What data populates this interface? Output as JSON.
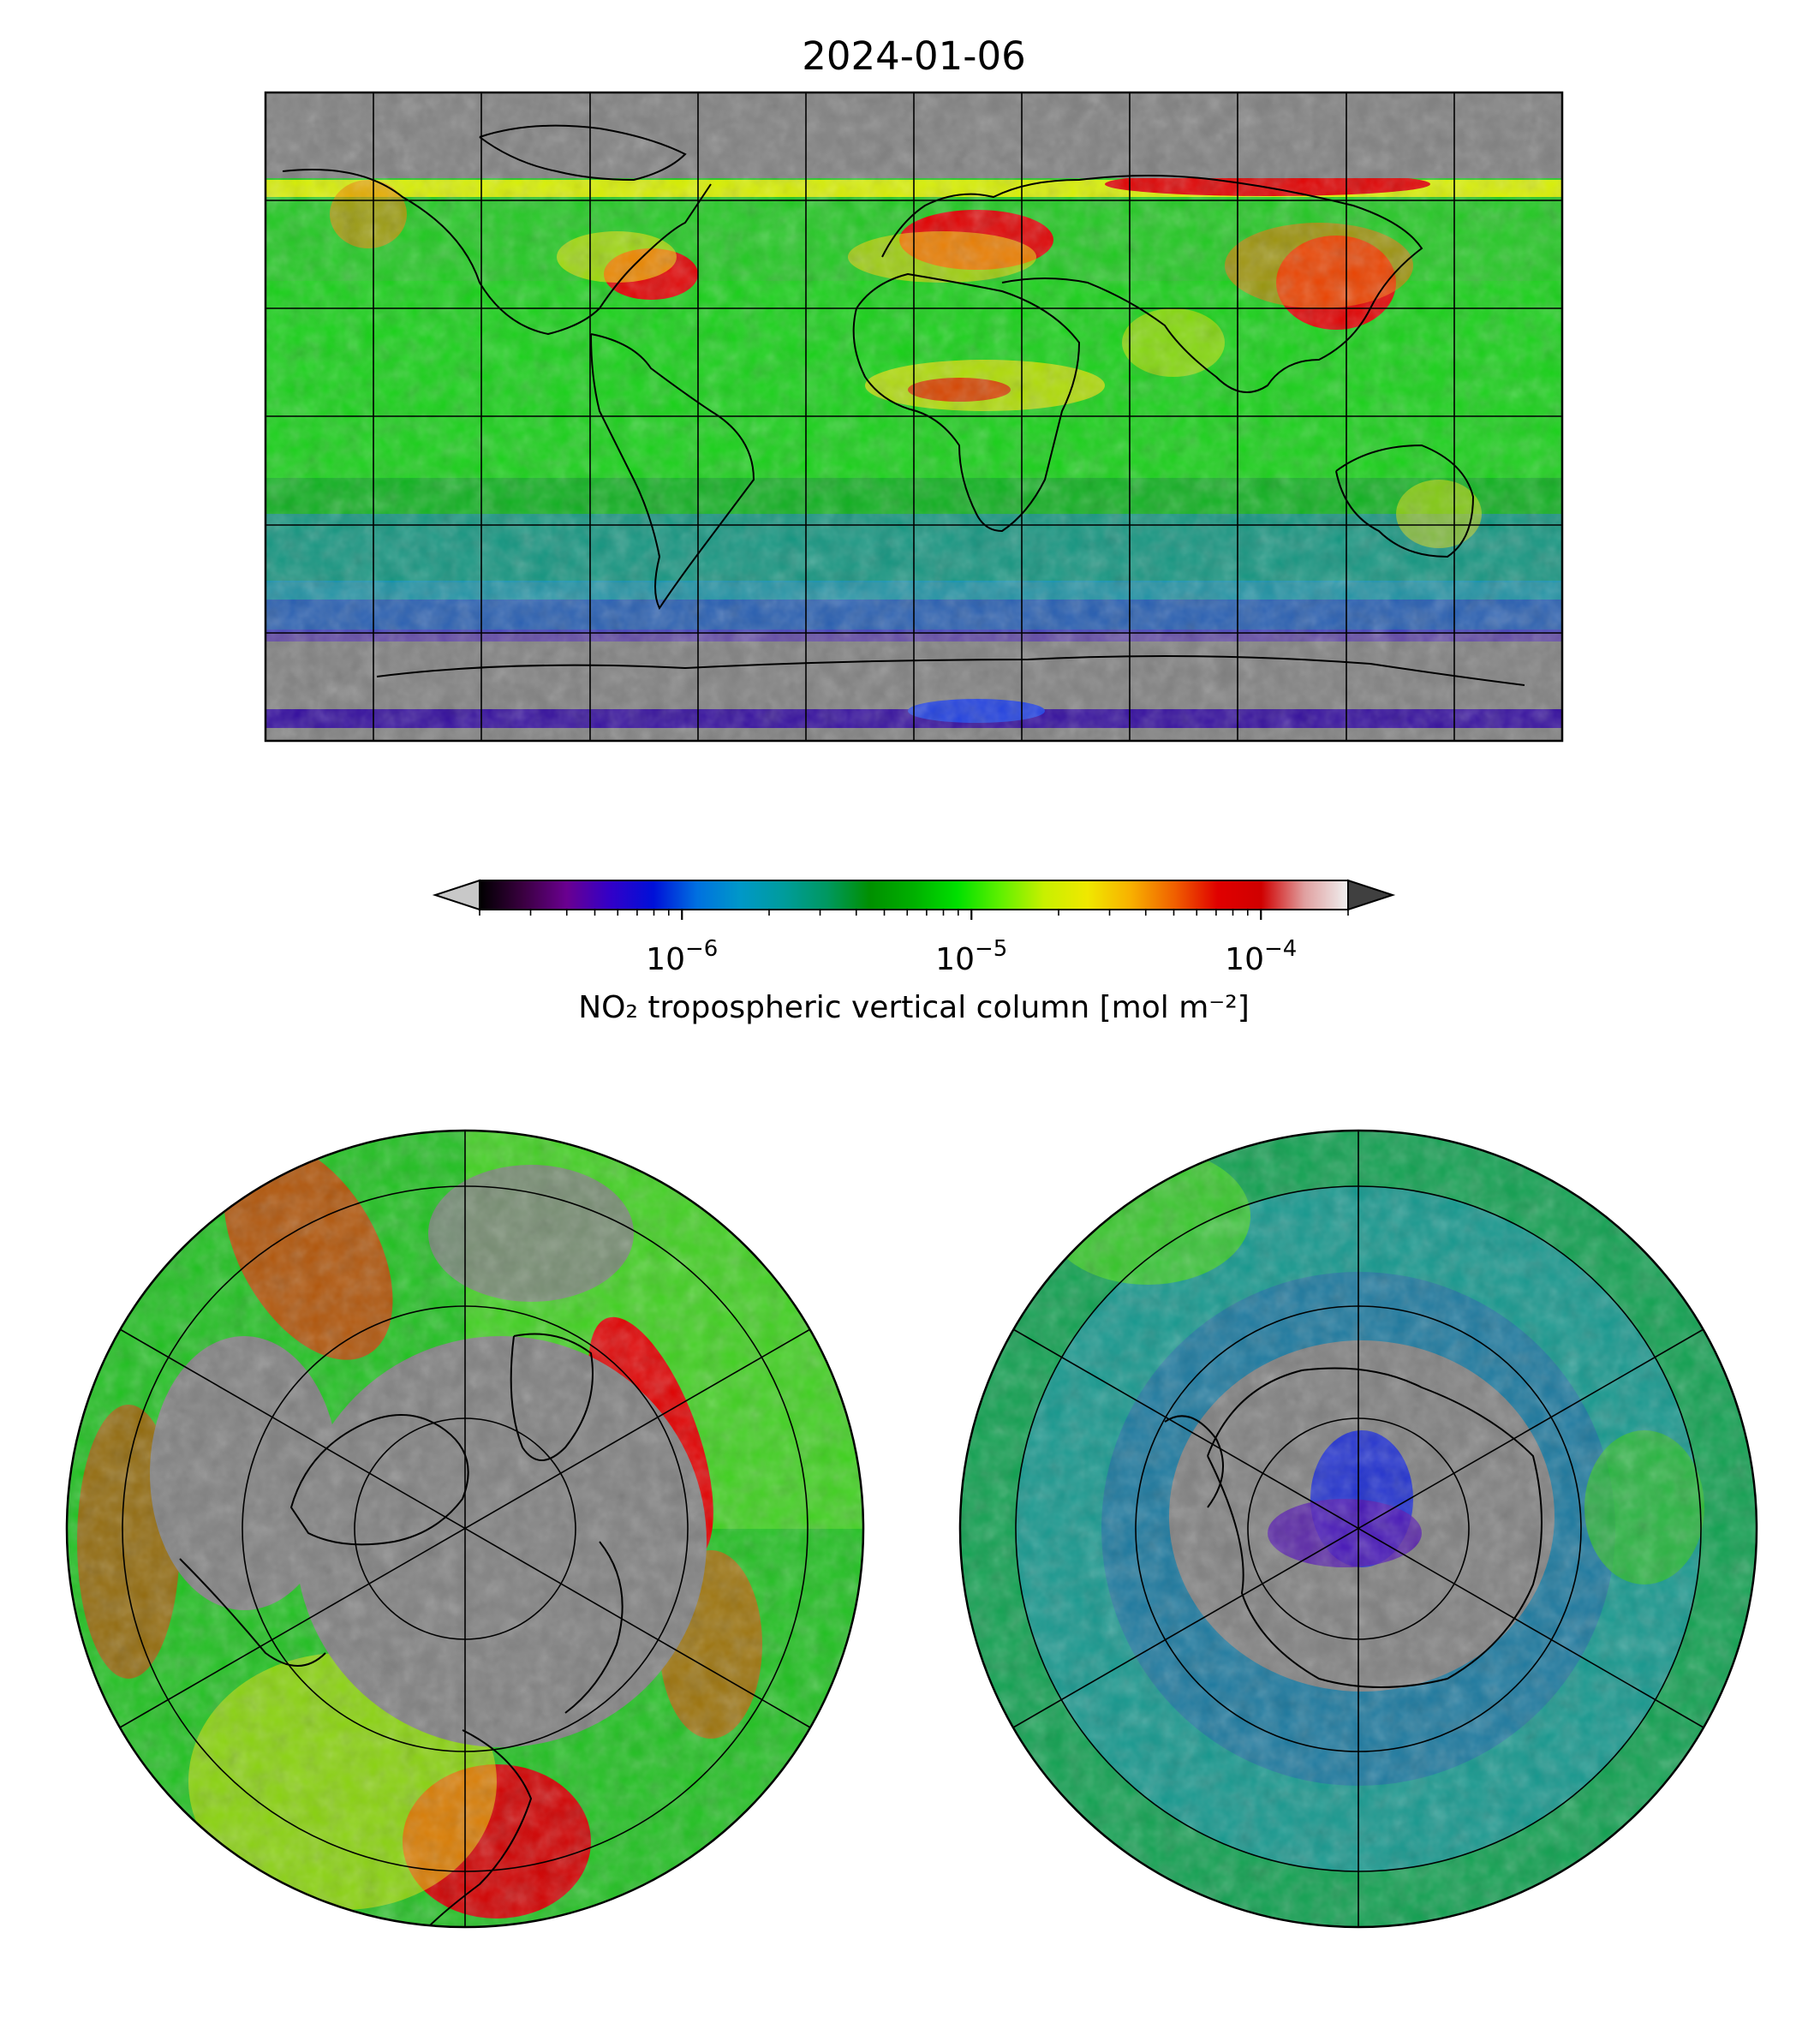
{
  "figure": {
    "title": "2024-01-06"
  },
  "colorbar": {
    "label": "NO₂ tropospheric vertical column [mol m⁻²]",
    "scale": "log",
    "range": [
      2e-07,
      0.0002
    ],
    "extend": "both",
    "under_color": "#c8c8c8",
    "over_color": "#404040",
    "ticks": [
      {
        "value": 1e-06,
        "base": "10",
        "exp": "−6"
      },
      {
        "value": 1e-05,
        "base": "10",
        "exp": "−5"
      },
      {
        "value": 0.0001,
        "base": "10",
        "exp": "−4"
      }
    ],
    "colormap": [
      "#000000",
      "#3a0040",
      "#6a0090",
      "#3300c8",
      "#0010d8",
      "#0070e0",
      "#0098c8",
      "#009c9c",
      "#009860",
      "#009000",
      "#00b000",
      "#00e000",
      "#60f000",
      "#c8f000",
      "#f0e800",
      "#f8b000",
      "#f06000",
      "#e00000",
      "#d00000",
      "#e0a0a0",
      "#f0f0f0"
    ]
  },
  "maps": {
    "global": {
      "projection": "plate-carree",
      "missing_color": "#808080"
    },
    "north_polar": {
      "projection": "north-polar-stereographic",
      "missing_color": "#808080"
    },
    "south_polar": {
      "projection": "south-polar-stereographic",
      "missing_color": "#808080"
    }
  }
}
